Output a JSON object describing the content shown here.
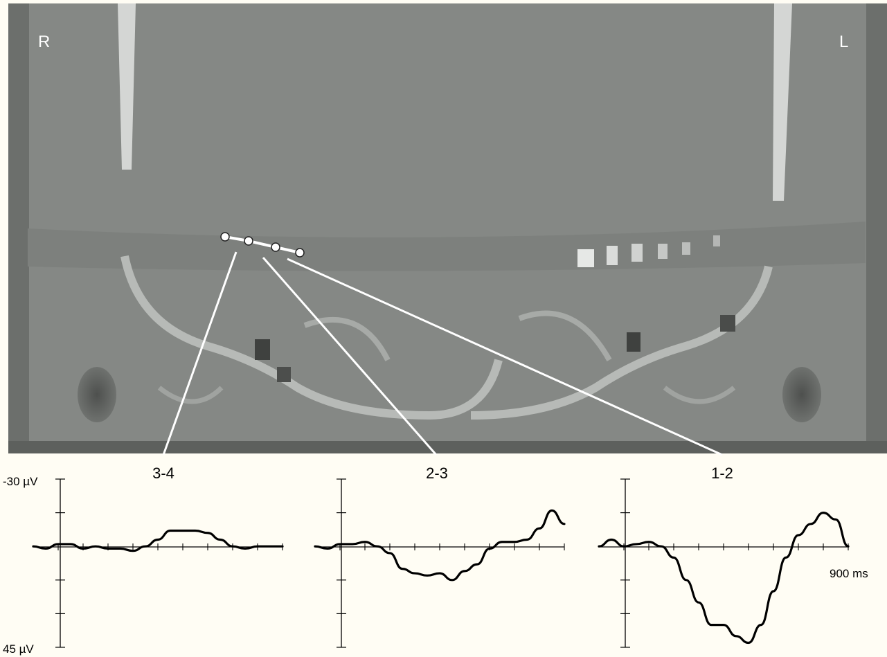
{
  "orientation": {
    "right": "R",
    "left": "L"
  },
  "axis": {
    "top_label": "-30 µV",
    "bottom_label": "45 µV",
    "time_label": "900 ms"
  },
  "electrodes": [
    "1",
    "2",
    "3",
    "4"
  ],
  "chart_data": {
    "type": "line",
    "xlabel": "",
    "ylabel": "",
    "x_range_ms": [
      -100,
      900
    ],
    "ylim_uV": [
      -30,
      45
    ],
    "y_axis_inverted": true,
    "panels": [
      {
        "title": "3-4",
        "x": [
          -100,
          -50,
          0,
          50,
          100,
          150,
          200,
          250,
          300,
          350,
          400,
          450,
          500,
          550,
          600,
          650,
          700,
          750,
          800,
          850,
          900
        ],
        "y": [
          0,
          1,
          -1,
          -1,
          1,
          0,
          1,
          1,
          2,
          0,
          -3,
          -7,
          -7,
          -7,
          -6,
          -3,
          0,
          1,
          0,
          0,
          0
        ]
      },
      {
        "title": "2-3",
        "x": [
          -100,
          -50,
          0,
          50,
          100,
          150,
          200,
          250,
          300,
          350,
          400,
          450,
          500,
          550,
          600,
          650,
          700,
          750,
          800,
          850,
          900
        ],
        "y": [
          0,
          1,
          -1,
          -1,
          -2,
          0,
          3,
          10,
          12,
          13,
          12,
          15,
          11,
          8,
          1,
          -2,
          -2,
          -3,
          -8,
          -16,
          -10
        ]
      },
      {
        "title": "1-2",
        "x": [
          -100,
          -50,
          0,
          50,
          100,
          150,
          200,
          250,
          300,
          350,
          400,
          450,
          500,
          550,
          600,
          650,
          700,
          750,
          800,
          850,
          900
        ],
        "y": [
          0,
          -3,
          0,
          -1,
          -2,
          0,
          5,
          15,
          25,
          35,
          35,
          40,
          43,
          35,
          20,
          5,
          -5,
          -10,
          -15,
          -12,
          0
        ]
      }
    ]
  }
}
